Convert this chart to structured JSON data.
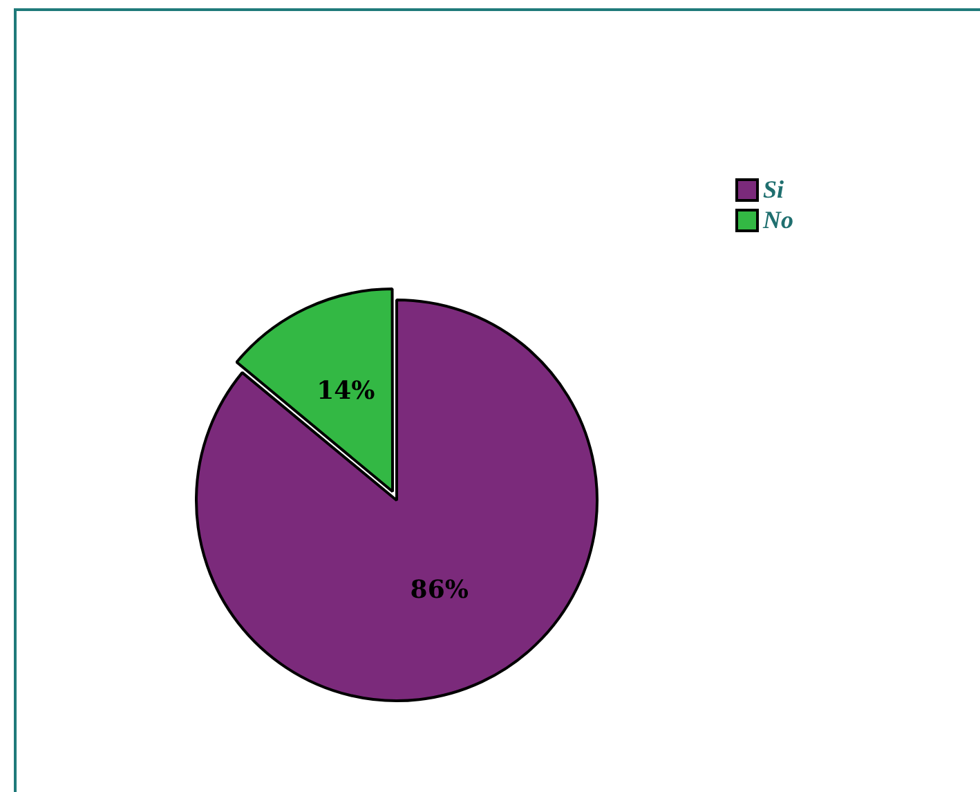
{
  "chart_data": {
    "type": "pie",
    "categories": [
      "Si",
      "No"
    ],
    "values": [
      86,
      14
    ],
    "colors": [
      "#7b2a7b",
      "#33b844"
    ],
    "value_labels": [
      "86%",
      "14%"
    ],
    "legend": "top right"
  }
}
